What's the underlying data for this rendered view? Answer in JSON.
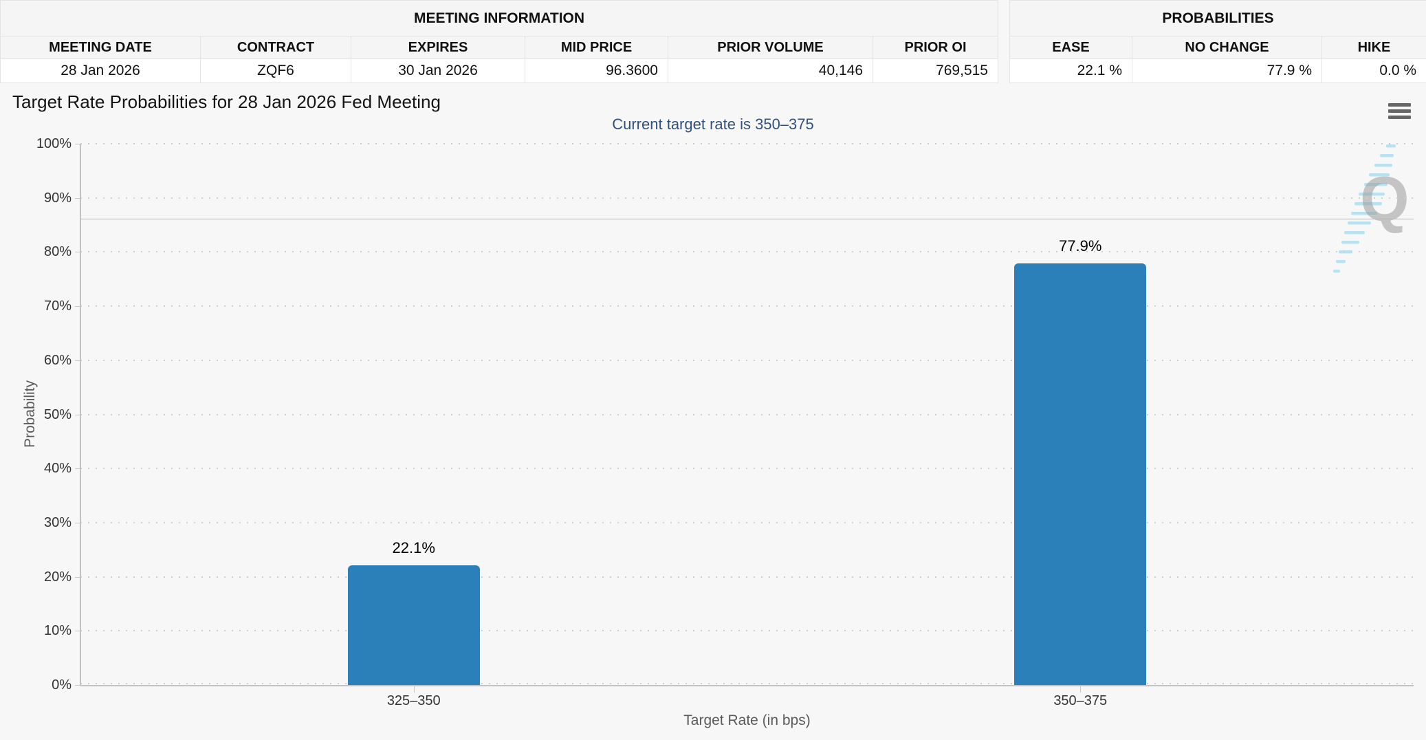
{
  "meeting_information": {
    "title": "MEETING INFORMATION",
    "columns": [
      "MEETING DATE",
      "CONTRACT",
      "EXPIRES",
      "MID PRICE",
      "PRIOR VOLUME",
      "PRIOR OI"
    ],
    "values": [
      "28 Jan 2026",
      "ZQF6",
      "30 Jan 2026",
      "96.3600",
      "40,146",
      "769,515"
    ]
  },
  "probabilities": {
    "title": "PROBABILITIES",
    "columns": [
      "EASE",
      "NO CHANGE",
      "HIKE"
    ],
    "values": [
      "22.1 %",
      "77.9 %",
      "0.0 %"
    ]
  },
  "chart": {
    "title": "Target Rate Probabilities for 28 Jan 2026 Fed Meeting",
    "watermark_letter": "Q",
    "icons": {
      "context_menu": "hamburger-menu-icon",
      "watermark": "quikstrike-q-watermark"
    }
  },
  "chart_data": {
    "type": "bar",
    "title": "Target Rate Probabilities for 28 Jan 2026 Fed Meeting",
    "subtitle": "Current target rate is 350–375",
    "categories": [
      "325–350",
      "350–375"
    ],
    "values": [
      22.1,
      77.9
    ],
    "data_labels": [
      "22.1%",
      "77.9%"
    ],
    "xlabel": "Target Rate (in bps)",
    "ylabel": "Probability",
    "ylim": [
      0,
      100
    ],
    "yticks": [
      0,
      10,
      20,
      30,
      40,
      50,
      60,
      70,
      80,
      90,
      100
    ],
    "ytick_labels": [
      "0%",
      "10%",
      "20%",
      "30%",
      "40%",
      "50%",
      "60%",
      "70%",
      "80%",
      "90%",
      "100%"
    ],
    "grid": "dotted-horizontal",
    "legend": "none",
    "bar_color": "#2b80b9",
    "reference_line": {
      "value": 86.2,
      "color": "#b2b2b2"
    }
  },
  "colors": {
    "subtitle_text": "#31517c",
    "bar": "#2b80b9",
    "table_header_bg": "#f5f5f5",
    "page_bg": "#f7f7f7",
    "watermark_blue": "#aedff2",
    "watermark_gray": "#9c9c9c"
  }
}
